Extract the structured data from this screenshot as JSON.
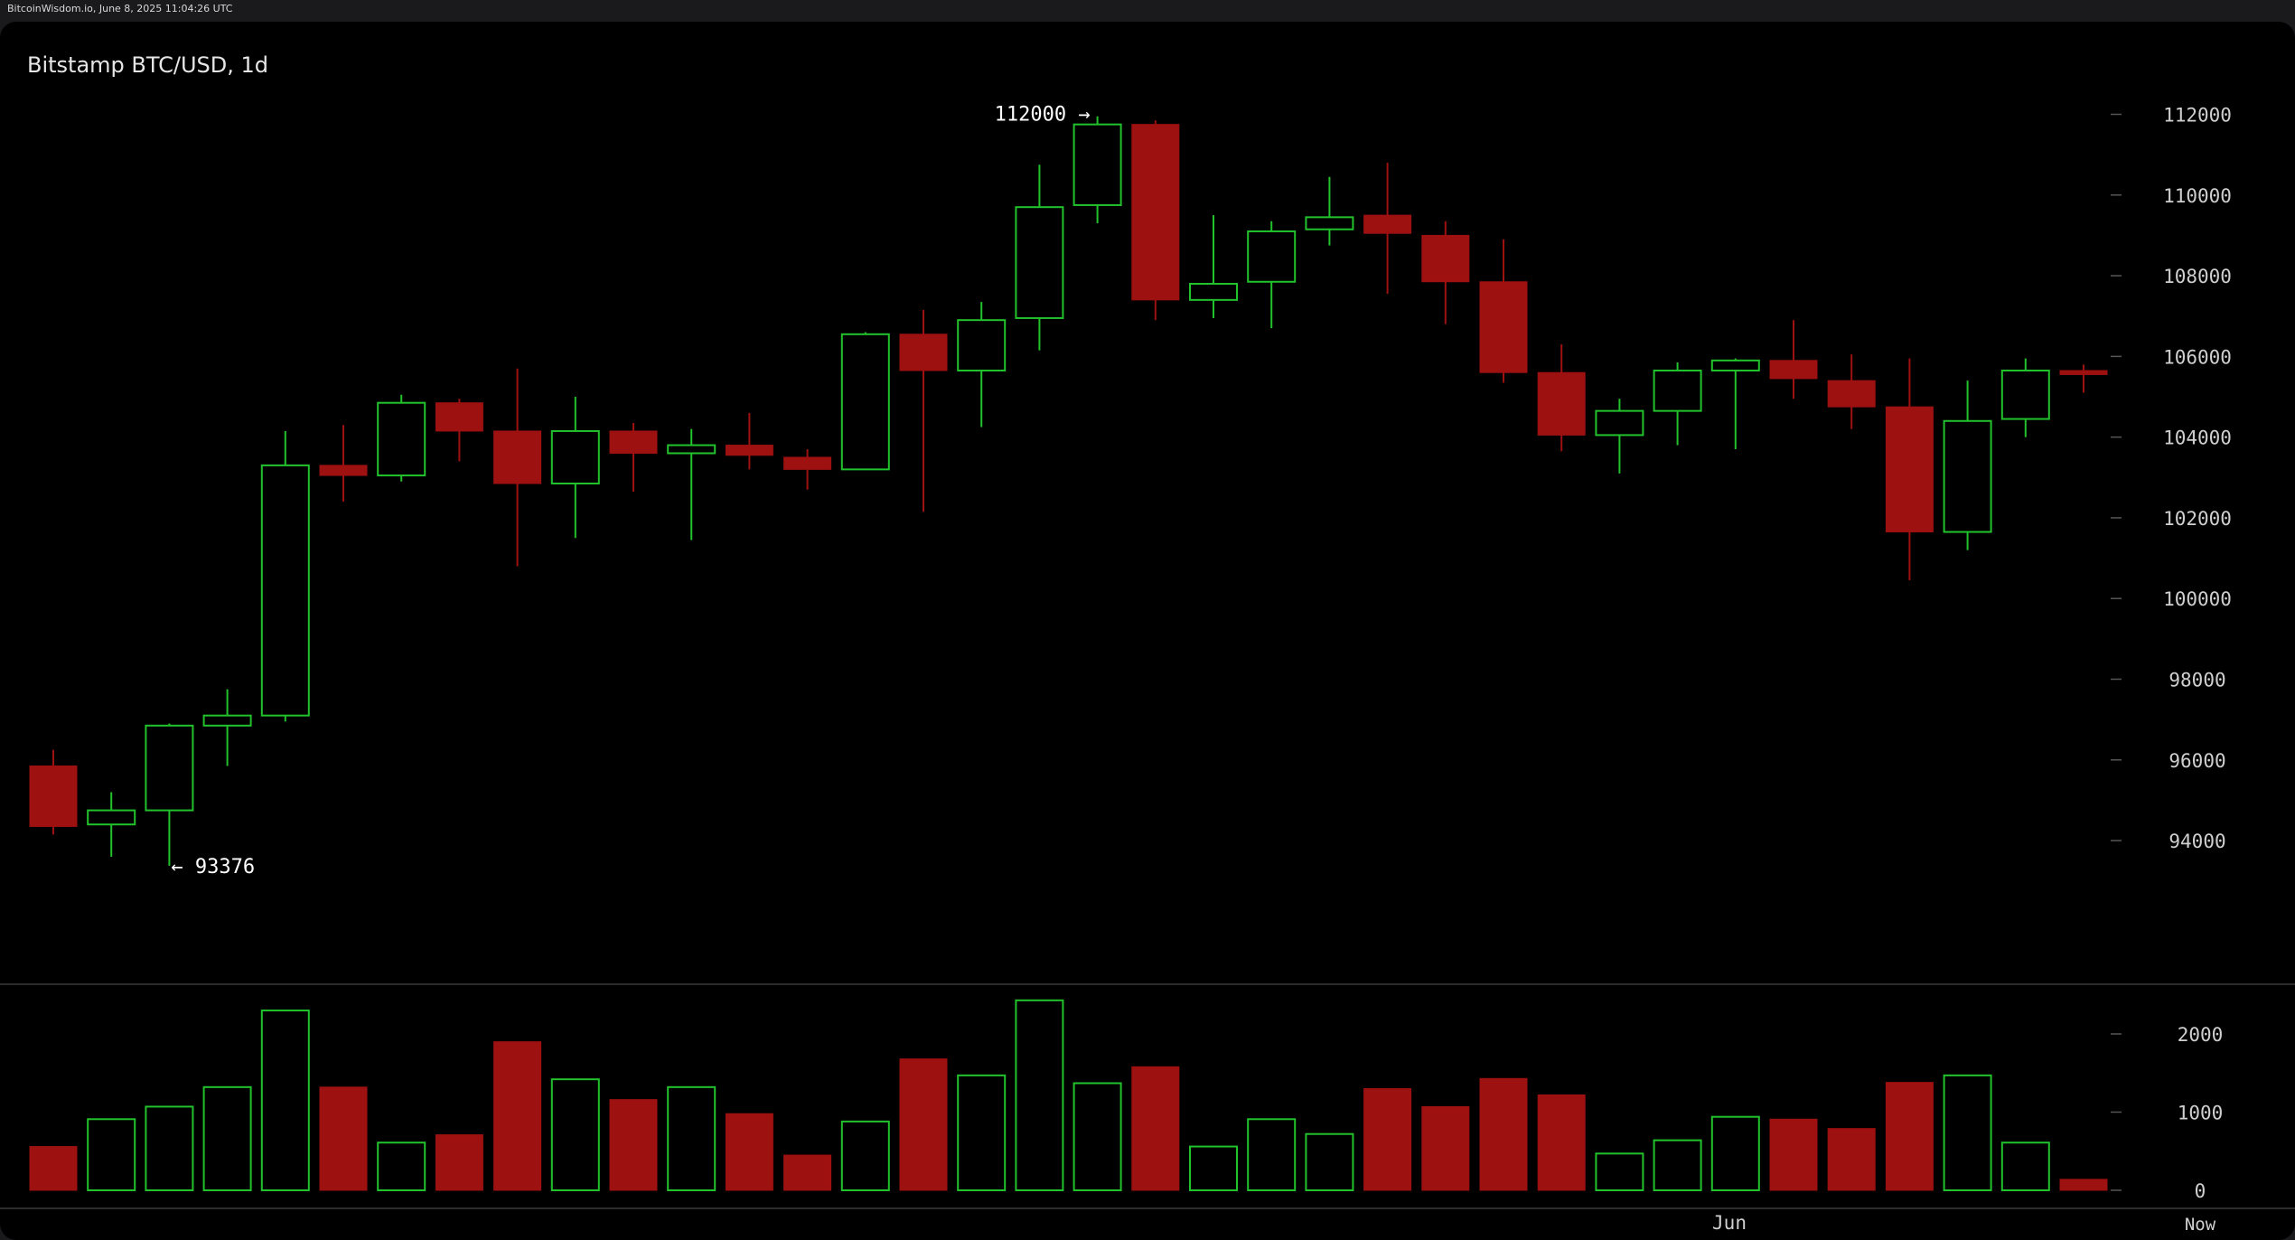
{
  "watermark": "BitcoinWisdom.io, June 8, 2025 11:04:26 UTC",
  "chart_data": {
    "type": "candlestick",
    "title": "Bitstamp BTC/USD, 1d",
    "ylim": [
      91000,
      113400
    ],
    "y_ticks": [
      "94000",
      "96000",
      "98000",
      "100000",
      "102000",
      "104000",
      "106000",
      "108000",
      "110000",
      "112000"
    ],
    "volume_ticks": [
      "0",
      "1000",
      "2000"
    ],
    "x_labels": [
      "Jun",
      "Now"
    ],
    "colors": {
      "up": "#22c22c",
      "down": "#9e1111",
      "background": "#000000",
      "text": "#d8d8d8"
    },
    "annotations": {
      "high_label": "112000 →",
      "low_label": "← 93376"
    },
    "candles": [
      {
        "open": 95850,
        "high": 96250,
        "low": 94150,
        "close": 94350,
        "volume": 560
      },
      {
        "open": 94400,
        "high": 95200,
        "low": 93600,
        "close": 94750,
        "volume": 910
      },
      {
        "open": 94750,
        "high": 96900,
        "low": 93376,
        "close": 96850,
        "volume": 1070
      },
      {
        "open": 96850,
        "high": 97750,
        "low": 95850,
        "close": 97100,
        "volume": 1320
      },
      {
        "open": 97100,
        "high": 104150,
        "low": 96950,
        "close": 103300,
        "volume": 2300
      },
      {
        "open": 103300,
        "high": 104300,
        "low": 102400,
        "close": 103050,
        "volume": 1320
      },
      {
        "open": 103050,
        "high": 105050,
        "low": 102900,
        "close": 104850,
        "volume": 610
      },
      {
        "open": 104850,
        "high": 104950,
        "low": 103400,
        "close": 104150,
        "volume": 710
      },
      {
        "open": 104150,
        "high": 105700,
        "low": 100800,
        "close": 102850,
        "volume": 1900
      },
      {
        "open": 102850,
        "high": 105000,
        "low": 101500,
        "close": 104150,
        "volume": 1420
      },
      {
        "open": 104150,
        "high": 104350,
        "low": 102650,
        "close": 103600,
        "volume": 1160
      },
      {
        "open": 103600,
        "high": 104200,
        "low": 101450,
        "close": 103800,
        "volume": 1320
      },
      {
        "open": 103800,
        "high": 104600,
        "low": 103200,
        "close": 103550,
        "volume": 980
      },
      {
        "open": 103500,
        "high": 103700,
        "low": 102700,
        "close": 103200,
        "volume": 450
      },
      {
        "open": 103200,
        "high": 106600,
        "low": 103200,
        "close": 106550,
        "volume": 880
      },
      {
        "open": 106550,
        "high": 107150,
        "low": 102150,
        "close": 105650,
        "volume": 1680
      },
      {
        "open": 105650,
        "high": 107350,
        "low": 104250,
        "close": 106900,
        "volume": 1470
      },
      {
        "open": 106950,
        "high": 110750,
        "low": 106150,
        "close": 109700,
        "volume": 2430
      },
      {
        "open": 109750,
        "high": 111950,
        "low": 109300,
        "close": 111750,
        "volume": 1370
      },
      {
        "open": 111750,
        "high": 111850,
        "low": 106900,
        "close": 107400,
        "volume": 1580
      },
      {
        "open": 107400,
        "high": 109500,
        "low": 106950,
        "close": 107800,
        "volume": 560
      },
      {
        "open": 107850,
        "high": 109350,
        "low": 106700,
        "close": 109100,
        "volume": 910
      },
      {
        "open": 109150,
        "high": 110450,
        "low": 108750,
        "close": 109450,
        "volume": 720
      },
      {
        "open": 109500,
        "high": 110800,
        "low": 107550,
        "close": 109050,
        "volume": 1300
      },
      {
        "open": 109000,
        "high": 109350,
        "low": 106800,
        "close": 107850,
        "volume": 1070
      },
      {
        "open": 107850,
        "high": 108900,
        "low": 105350,
        "close": 105600,
        "volume": 1430
      },
      {
        "open": 105600,
        "high": 106300,
        "low": 103650,
        "close": 104050,
        "volume": 1220
      },
      {
        "open": 104050,
        "high": 104950,
        "low": 103100,
        "close": 104650,
        "volume": 470
      },
      {
        "open": 104650,
        "high": 105850,
        "low": 103800,
        "close": 105650,
        "volume": 640
      },
      {
        "open": 105650,
        "high": 105950,
        "low": 103700,
        "close": 105900,
        "volume": 940
      },
      {
        "open": 105900,
        "high": 106900,
        "low": 104950,
        "close": 105450,
        "volume": 910
      },
      {
        "open": 105400,
        "high": 106050,
        "low": 104200,
        "close": 104750,
        "volume": 790
      },
      {
        "open": 104750,
        "high": 105950,
        "low": 100450,
        "close": 101650,
        "volume": 1380
      },
      {
        "open": 101650,
        "high": 105400,
        "low": 101200,
        "close": 104400,
        "volume": 1470
      },
      {
        "open": 104450,
        "high": 105950,
        "low": 104000,
        "close": 105650,
        "volume": 610
      },
      {
        "open": 105650,
        "high": 105800,
        "low": 105100,
        "close": 105550,
        "volume": 140
      }
    ]
  }
}
